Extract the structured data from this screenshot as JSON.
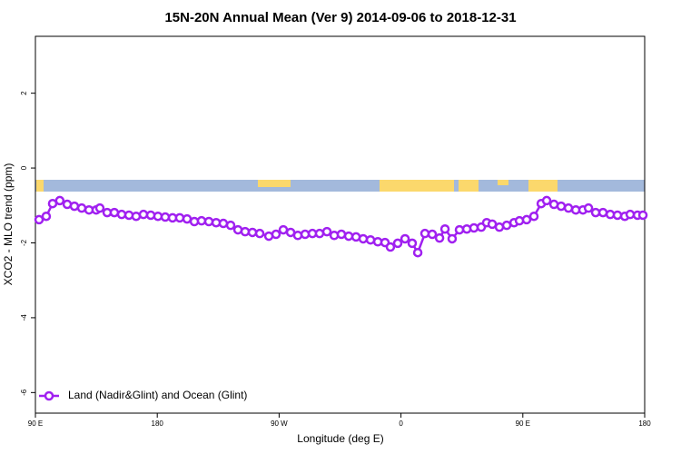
{
  "chart_data": {
    "type": "line",
    "title": "15N-20N Annual Mean (Ver 9)   2014-09-06 to 2018-12-31",
    "xlabel": "Longitude (deg E)",
    "ylabel": "XCO2 - MLO trend (ppm)",
    "x": [
      92.7,
      98,
      102.7,
      108,
      113.5,
      118.8,
      124.2,
      129.6,
      134.9,
      137.6,
      143,
      148.3,
      153.7,
      159.1,
      164.4,
      169.8,
      175.2,
      180.5,
      185.9,
      191.3,
      196.6,
      202,
      207.4,
      212.7,
      218.1,
      223.5,
      228.8,
      234.2,
      239.6,
      244.9,
      250.3,
      255.7,
      262.4,
      267.7,
      273.1,
      278.5,
      283.8,
      289.2,
      294.6,
      299.9,
      305.3,
      310.7,
      316,
      321.4,
      326.8,
      332.1,
      337.5,
      342.9,
      348.2,
      352.2,
      357.6,
      363,
      368.3,
      372.4,
      377.7,
      383.1,
      388.5,
      392.5,
      397.8,
      403.2,
      408.6,
      413.9,
      419.3,
      423.3,
      427.4,
      432.7,
      438.1,
      443.5,
      447.5,
      452.8,
      458.2,
      463.6,
      467.6,
      473,
      478.3,
      483.7,
      489.1,
      494.4,
      498.5,
      503.8,
      509.2,
      514.6,
      519.9,
      525.3,
      529.3,
      534.7,
      538.7
    ],
    "series": [
      {
        "name": "Land (Nadir&Glint) and Ocean (Glint)",
        "color": "#a020f0",
        "values": [
          -1.38,
          -1.29,
          -0.95,
          -0.87,
          -0.97,
          -1.02,
          -1.07,
          -1.12,
          -1.12,
          -1.07,
          -1.19,
          -1.19,
          -1.24,
          -1.26,
          -1.29,
          -1.24,
          -1.26,
          -1.29,
          -1.31,
          -1.33,
          -1.33,
          -1.36,
          -1.43,
          -1.41,
          -1.43,
          -1.46,
          -1.48,
          -1.53,
          -1.65,
          -1.7,
          -1.72,
          -1.75,
          -1.82,
          -1.77,
          -1.65,
          -1.72,
          -1.8,
          -1.77,
          -1.75,
          -1.75,
          -1.7,
          -1.8,
          -1.77,
          -1.82,
          -1.84,
          -1.89,
          -1.92,
          -1.97,
          -1.99,
          -2.11,
          -2.01,
          -1.89,
          -2.01,
          -2.26,
          -1.75,
          -1.77,
          -1.87,
          -1.63,
          -1.89,
          -1.65,
          -1.63,
          -1.6,
          -1.58,
          -1.46,
          -1.5,
          -1.58,
          -1.53,
          -1.46,
          -1.41,
          -1.38,
          -1.29,
          -0.95,
          -0.87,
          -0.97,
          -1.02,
          -1.07,
          -1.12,
          -1.12,
          -1.07,
          -1.19,
          -1.19,
          -1.24,
          -1.26,
          -1.29,
          -1.24,
          -1.26,
          -1.26
        ]
      }
    ],
    "xlim": [
      90,
      540
    ],
    "xticks": [
      {
        "value": 90,
        "label": "90 E"
      },
      {
        "value": 180,
        "label": "180"
      },
      {
        "value": 270,
        "label": "90 W"
      },
      {
        "value": 360,
        "label": "0"
      },
      {
        "value": 450,
        "label": "90 E"
      },
      {
        "value": 540,
        "label": "180"
      }
    ],
    "ylim": [
      -6.55,
      3.52
    ],
    "yticks": [
      2,
      0,
      -2,
      -4,
      -6
    ],
    "legend": "lower left"
  }
}
